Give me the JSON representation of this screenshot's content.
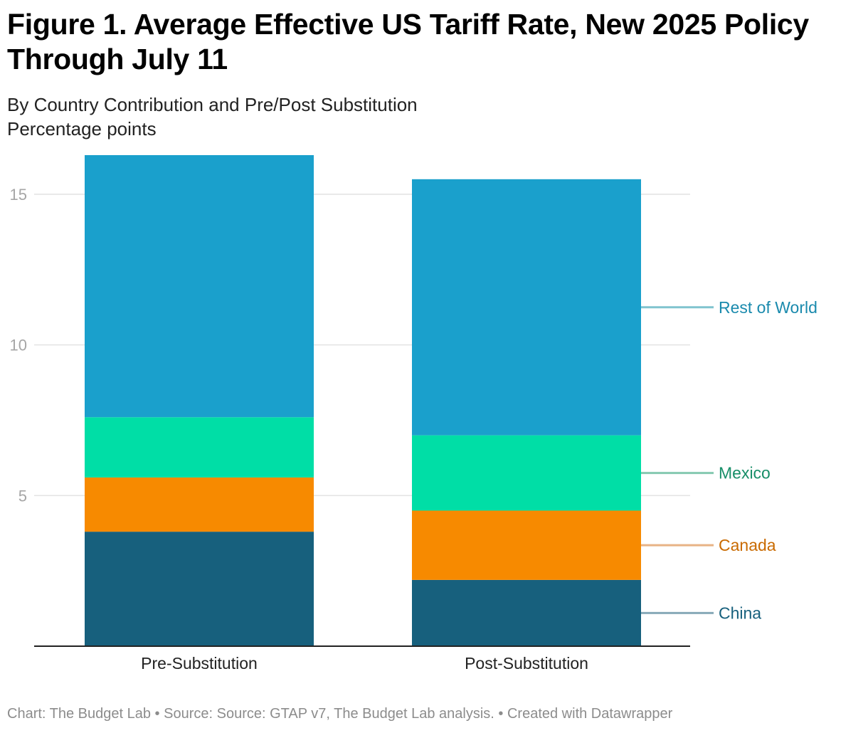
{
  "title": "Figure 1. Average Effective US Tariff Rate, New 2025 Policy Through July 11",
  "subtitle_line1": "By Country Contribution and Pre/Post Substitution",
  "subtitle_line2": "Percentage points",
  "footer": {
    "chart_credit": "Chart: The Budget Lab",
    "source": "Source: Source: GTAP v7, The Budget Lab analysis.",
    "tool": "Created with Datawrapper",
    "separator": " • "
  },
  "chart_data": {
    "type": "bar",
    "stacked": true,
    "categories": [
      "Pre-Substitution",
      "Post-Substitution"
    ],
    "series": [
      {
        "name": "China",
        "values": [
          3.8,
          2.2
        ],
        "color": "#17607d",
        "label_color": "#17607d",
        "line_color": "#87a9b8"
      },
      {
        "name": "Canada",
        "values": [
          1.8,
          2.3
        ],
        "color": "#f78a00",
        "label_color": "#c96a00",
        "line_color": "#e8b385"
      },
      {
        "name": "Mexico",
        "values": [
          2.0,
          2.5
        ],
        "color": "#00dea6",
        "label_color": "#178e68",
        "line_color": "#84c9b0"
      },
      {
        "name": "Rest of World",
        "values": [
          8.7,
          8.5
        ],
        "color": "#1aa0cc",
        "label_color": "#1a8aad",
        "line_color": "#80c4cf"
      }
    ],
    "yticks": [
      5,
      10,
      15
    ],
    "ylim": [
      0,
      16.3
    ],
    "grid": true,
    "legend": "right, inline labels"
  }
}
